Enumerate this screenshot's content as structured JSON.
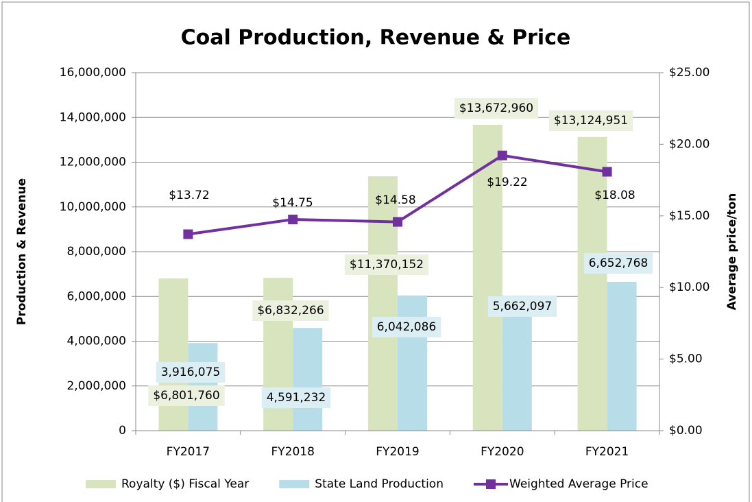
{
  "chart_data": {
    "type": "bar_line",
    "title": "Coal Production, Revenue & Price",
    "ylabel": "Production & Revenue",
    "y2label": "Average price/ton",
    "categories": [
      "FY2017",
      "FY2018",
      "FY2019",
      "FY2020",
      "FY2021"
    ],
    "series": [
      {
        "name": "Royalty ($) Fiscal Year",
        "type": "bar",
        "color": "#d7e4bd",
        "label_bg": "#ebf1de",
        "values": [
          6801760,
          6832266,
          11370152,
          13672960,
          13124951
        ],
        "value_labels": [
          "$6,801,760",
          "$6,832,266",
          "$11,370,152",
          "$13,672,960",
          "$13,124,951"
        ]
      },
      {
        "name": "State Land Production",
        "type": "bar",
        "color": "#b7dde8",
        "label_bg": "#dbeef4",
        "values": [
          3916075,
          4591232,
          6042086,
          5662097,
          6652768
        ],
        "value_labels": [
          "3,916,075",
          "4,591,232",
          "6,042,086",
          "5,662,097",
          "6,652,768"
        ]
      },
      {
        "name": "Weighted Average Price",
        "type": "line",
        "axis": "y2",
        "color": "#7030a0",
        "values": [
          13.72,
          14.75,
          14.58,
          19.22,
          18.08
        ],
        "value_labels": [
          "$13.72",
          "$14.75",
          "$14.58",
          "$19.22",
          "$18.08"
        ]
      }
    ],
    "ylim": [
      0,
      16000000
    ],
    "yticks": [
      0,
      {
        "value": 2000000,
        "label": "2,000,000"
      },
      {
        "value": 4000000,
        "label": "4,000,000"
      },
      {
        "value": 6000000,
        "label": "6,000,000"
      },
      {
        "value": 8000000,
        "label": "8,000,000"
      },
      {
        "value": 10000000,
        "label": "10,000,000"
      },
      {
        "value": 12000000,
        "label": "12,000,000"
      },
      {
        "value": 14000000,
        "label": "14,000,000"
      },
      {
        "value": 16000000,
        "label": "16,000,000"
      }
    ],
    "y2lim": [
      0,
      25
    ],
    "y2ticks": [
      {
        "value": 0,
        "label": "$0.00"
      },
      {
        "value": 5,
        "label": "$5.00"
      },
      {
        "value": 10,
        "label": "$10.00"
      },
      {
        "value": 15,
        "label": "$15.00"
      },
      {
        "value": 20,
        "label": "$20.00"
      },
      {
        "value": 25,
        "label": "$25.00"
      }
    ],
    "grid": true,
    "legend": "bottom"
  }
}
